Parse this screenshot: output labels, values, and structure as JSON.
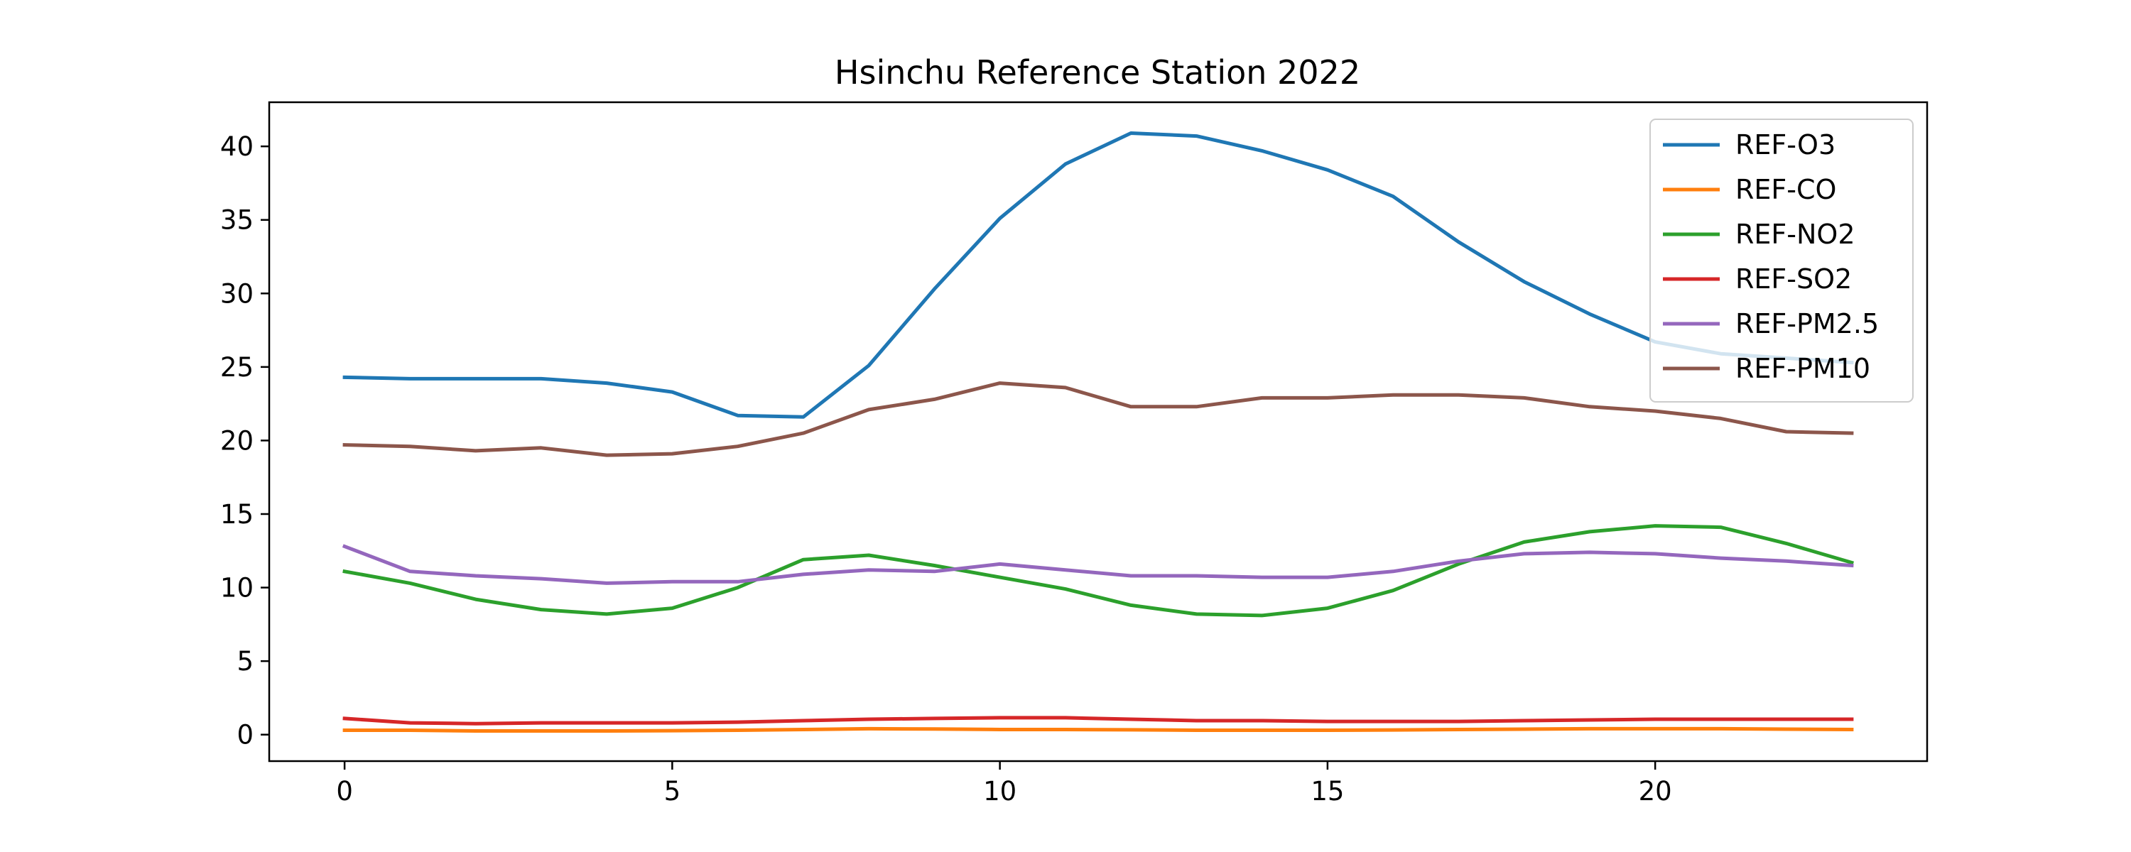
{
  "chart_data": {
    "type": "line",
    "title": "Hsinchu Reference Station 2022",
    "xlabel": "",
    "ylabel": "",
    "xlim": [
      -1.15,
      24.15
    ],
    "ylim": [
      -1.8,
      43.0
    ],
    "x_ticks": [
      0,
      5,
      10,
      15,
      20
    ],
    "y_ticks": [
      0,
      5,
      10,
      15,
      20,
      25,
      30,
      35,
      40
    ],
    "grid": false,
    "legend_position": "top-right",
    "x": [
      0,
      1,
      2,
      3,
      4,
      5,
      6,
      7,
      8,
      9,
      10,
      11,
      12,
      13,
      14,
      15,
      16,
      17,
      18,
      19,
      20,
      21,
      22,
      23
    ],
    "series": [
      {
        "name": "REF-O3",
        "color": "#1f77b4",
        "values": [
          24.3,
          24.2,
          24.2,
          24.2,
          23.9,
          23.3,
          21.7,
          21.6,
          25.1,
          30.3,
          35.1,
          38.8,
          40.9,
          40.7,
          39.7,
          38.4,
          36.6,
          33.5,
          30.8,
          28.6,
          26.7,
          25.9,
          25.6,
          25.3
        ]
      },
      {
        "name": "REF-CO",
        "color": "#ff7f0e",
        "values": [
          0.3,
          0.3,
          0.25,
          0.25,
          0.25,
          0.27,
          0.3,
          0.35,
          0.4,
          0.38,
          0.35,
          0.35,
          0.33,
          0.3,
          0.3,
          0.3,
          0.32,
          0.35,
          0.37,
          0.4,
          0.4,
          0.4,
          0.37,
          0.35
        ]
      },
      {
        "name": "REF-NO2",
        "color": "#2ca02c",
        "values": [
          11.1,
          10.3,
          9.2,
          8.5,
          8.2,
          8.6,
          10.0,
          11.9,
          12.2,
          11.5,
          10.7,
          9.9,
          8.8,
          8.2,
          8.1,
          8.6,
          9.8,
          11.6,
          13.1,
          13.8,
          14.2,
          14.1,
          13.0,
          11.7
        ]
      },
      {
        "name": "REF-SO2",
        "color": "#d62728",
        "values": [
          1.1,
          0.8,
          0.75,
          0.8,
          0.8,
          0.8,
          0.85,
          0.95,
          1.05,
          1.1,
          1.15,
          1.15,
          1.05,
          0.95,
          0.95,
          0.9,
          0.9,
          0.9,
          0.95,
          1.0,
          1.05,
          1.05,
          1.05,
          1.05
        ]
      },
      {
        "name": "REF-PM2.5",
        "color": "#9467bd",
        "values": [
          12.8,
          11.1,
          10.8,
          10.6,
          10.3,
          10.4,
          10.4,
          10.9,
          11.2,
          11.1,
          11.6,
          11.2,
          10.8,
          10.8,
          10.7,
          10.7,
          11.1,
          11.8,
          12.3,
          12.4,
          12.3,
          12.0,
          11.8,
          11.5
        ]
      },
      {
        "name": "REF-PM10",
        "color": "#8c564b",
        "values": [
          19.7,
          19.6,
          19.3,
          19.5,
          19.0,
          19.1,
          19.6,
          20.5,
          22.1,
          22.8,
          23.9,
          23.6,
          22.3,
          22.3,
          22.9,
          22.9,
          23.1,
          23.1,
          22.9,
          22.3,
          22.0,
          21.5,
          20.6,
          20.5
        ]
      }
    ]
  }
}
